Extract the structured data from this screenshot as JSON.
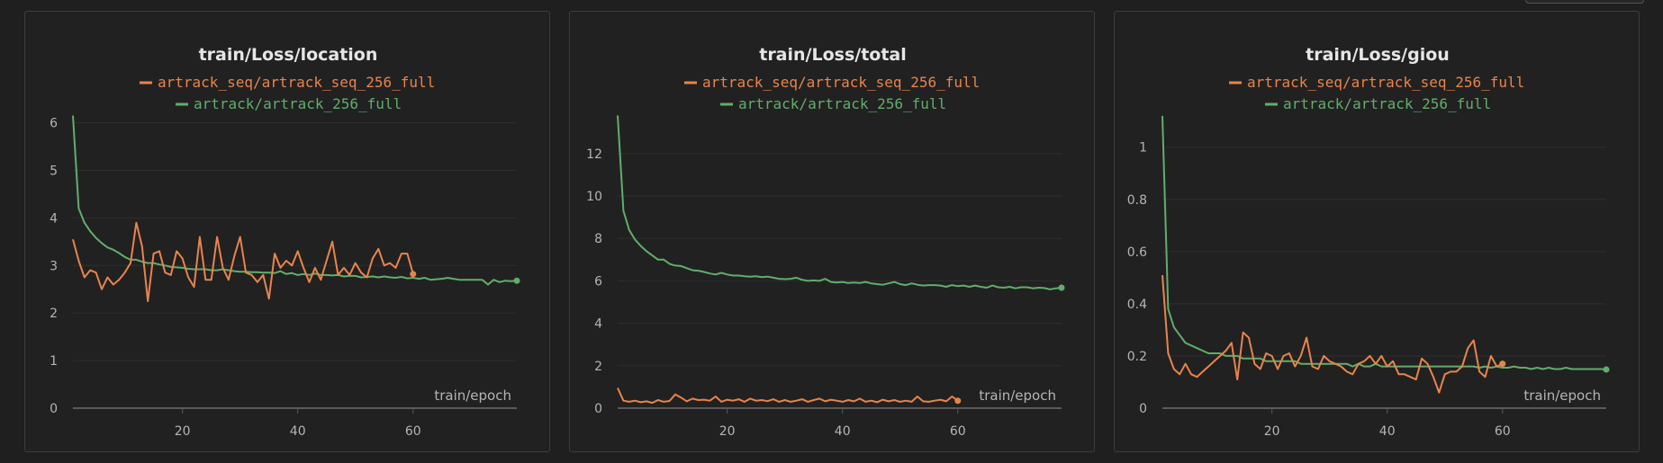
{
  "colors": {
    "orange": "#e8844c",
    "green": "#62ad6b",
    "grid": "#2f2f2f",
    "axis": "#5a5a5a",
    "text": "#b5b5b5",
    "title": "#e6e6e6"
  },
  "chart_data": [
    {
      "type": "line",
      "title": "train/Loss/location",
      "xlabel": "train/epoch",
      "xticks": [
        20,
        40,
        60
      ],
      "yticks": [
        0,
        1,
        2,
        3,
        4,
        5,
        6
      ],
      "xlim": [
        1,
        78
      ],
      "ylim": [
        0,
        6.2
      ],
      "series": [
        {
          "name": "artrack_seq/artrack_seq_256_full",
          "color": "#e8844c",
          "x": [
            1,
            2,
            3,
            4,
            5,
            6,
            7,
            8,
            9,
            10,
            11,
            12,
            13,
            14,
            15,
            16,
            17,
            18,
            19,
            20,
            21,
            22,
            23,
            24,
            25,
            26,
            27,
            28,
            29,
            30,
            31,
            32,
            33,
            34,
            35,
            36,
            37,
            38,
            39,
            40,
            41,
            42,
            43,
            44,
            45,
            46,
            47,
            48,
            49,
            50,
            51,
            52,
            53,
            54,
            55,
            56,
            57,
            58,
            59,
            60
          ],
          "y": [
            3.55,
            3.1,
            2.75,
            2.9,
            2.85,
            2.5,
            2.75,
            2.6,
            2.7,
            2.85,
            3.05,
            3.9,
            3.4,
            2.25,
            3.25,
            3.3,
            2.85,
            2.8,
            3.3,
            3.15,
            2.75,
            2.55,
            3.6,
            2.7,
            2.7,
            3.6,
            2.95,
            2.7,
            3.2,
            3.6,
            2.85,
            2.8,
            2.65,
            2.8,
            2.3,
            3.25,
            2.95,
            3.1,
            3.0,
            3.3,
            2.95,
            2.65,
            2.95,
            2.7,
            3.1,
            3.5,
            2.8,
            2.95,
            2.8,
            3.05,
            2.85,
            2.75,
            3.15,
            3.35,
            3.0,
            3.05,
            2.95,
            3.25,
            3.25,
            2.82
          ]
        },
        {
          "name": "artrack/artrack_256_full",
          "color": "#62ad6b",
          "x": [
            1,
            2,
            3,
            4,
            5,
            6,
            7,
            8,
            9,
            10,
            11,
            12,
            13,
            14,
            15,
            16,
            17,
            18,
            19,
            20,
            21,
            22,
            23,
            24,
            25,
            26,
            27,
            28,
            29,
            30,
            31,
            32,
            33,
            34,
            35,
            36,
            37,
            38,
            39,
            40,
            41,
            42,
            43,
            44,
            45,
            46,
            47,
            48,
            49,
            50,
            51,
            52,
            53,
            54,
            55,
            56,
            57,
            58,
            59,
            60,
            61,
            62,
            63,
            64,
            65,
            66,
            67,
            68,
            69,
            70,
            71,
            72,
            73,
            74,
            75,
            76,
            77,
            78
          ],
          "y": [
            6.15,
            4.2,
            3.9,
            3.72,
            3.58,
            3.47,
            3.38,
            3.33,
            3.26,
            3.18,
            3.12,
            3.12,
            3.08,
            3.05,
            3.05,
            3.02,
            3.0,
            2.97,
            2.96,
            2.95,
            2.93,
            2.92,
            2.92,
            2.92,
            2.9,
            2.9,
            2.92,
            2.9,
            2.88,
            2.87,
            2.87,
            2.86,
            2.86,
            2.85,
            2.85,
            2.84,
            2.88,
            2.82,
            2.84,
            2.8,
            2.82,
            2.8,
            2.83,
            2.8,
            2.8,
            2.79,
            2.8,
            2.77,
            2.78,
            2.78,
            2.75,
            2.76,
            2.77,
            2.75,
            2.77,
            2.75,
            2.74,
            2.76,
            2.73,
            2.74,
            2.72,
            2.74,
            2.7,
            2.71,
            2.72,
            2.74,
            2.72,
            2.7,
            2.7,
            2.7,
            2.7,
            2.7,
            2.6,
            2.7,
            2.65,
            2.68,
            2.67,
            2.68
          ]
        }
      ]
    },
    {
      "type": "line",
      "title": "train/Loss/total",
      "xlabel": "train/epoch",
      "xticks": [
        20,
        40,
        60
      ],
      "yticks": [
        0,
        2,
        4,
        6,
        8,
        10,
        12
      ],
      "xlim": [
        1,
        78
      ],
      "ylim": [
        0,
        13.9
      ],
      "series": [
        {
          "name": "artrack_seq/artrack_seq_256_full",
          "color": "#e8844c",
          "x": [
            1,
            2,
            3,
            4,
            5,
            6,
            7,
            8,
            9,
            10,
            11,
            12,
            13,
            14,
            15,
            16,
            17,
            18,
            19,
            20,
            21,
            22,
            23,
            24,
            25,
            26,
            27,
            28,
            29,
            30,
            31,
            32,
            33,
            34,
            35,
            36,
            37,
            38,
            39,
            40,
            41,
            42,
            43,
            44,
            45,
            46,
            47,
            48,
            49,
            50,
            51,
            52,
            53,
            54,
            55,
            56,
            57,
            58,
            59,
            60
          ],
          "y": [
            0.95,
            0.35,
            0.3,
            0.35,
            0.28,
            0.32,
            0.25,
            0.38,
            0.3,
            0.34,
            0.65,
            0.5,
            0.32,
            0.45,
            0.38,
            0.4,
            0.35,
            0.55,
            0.3,
            0.4,
            0.35,
            0.42,
            0.3,
            0.45,
            0.35,
            0.38,
            0.33,
            0.42,
            0.3,
            0.38,
            0.3,
            0.35,
            0.42,
            0.3,
            0.38,
            0.45,
            0.32,
            0.4,
            0.35,
            0.3,
            0.38,
            0.32,
            0.45,
            0.3,
            0.35,
            0.28,
            0.4,
            0.32,
            0.38,
            0.3,
            0.35,
            0.3,
            0.55,
            0.32,
            0.3,
            0.35,
            0.4,
            0.32,
            0.55,
            0.35
          ]
        },
        {
          "name": "artrack/artrack_256_full",
          "color": "#62ad6b",
          "x": [
            1,
            2,
            3,
            4,
            5,
            6,
            7,
            8,
            9,
            10,
            11,
            12,
            13,
            14,
            15,
            16,
            17,
            18,
            19,
            20,
            21,
            22,
            23,
            24,
            25,
            26,
            27,
            28,
            29,
            30,
            31,
            32,
            33,
            34,
            35,
            36,
            37,
            38,
            39,
            40,
            41,
            42,
            43,
            44,
            45,
            46,
            47,
            48,
            49,
            50,
            51,
            52,
            53,
            54,
            55,
            56,
            57,
            58,
            59,
            60,
            61,
            62,
            63,
            64,
            65,
            66,
            67,
            68,
            69,
            70,
            71,
            72,
            73,
            74,
            75,
            76,
            77,
            78
          ],
          "y": [
            13.8,
            9.3,
            8.4,
            7.95,
            7.65,
            7.4,
            7.2,
            7.0,
            7.0,
            6.8,
            6.72,
            6.7,
            6.6,
            6.5,
            6.48,
            6.42,
            6.35,
            6.3,
            6.38,
            6.3,
            6.25,
            6.25,
            6.22,
            6.2,
            6.22,
            6.18,
            6.2,
            6.15,
            6.1,
            6.08,
            6.1,
            6.15,
            6.05,
            6.0,
            6.02,
            6.0,
            6.1,
            5.95,
            5.92,
            5.95,
            5.9,
            5.92,
            5.9,
            5.95,
            5.88,
            5.85,
            5.82,
            5.88,
            5.95,
            5.85,
            5.8,
            5.88,
            5.82,
            5.78,
            5.8,
            5.8,
            5.78,
            5.72,
            5.8,
            5.75,
            5.78,
            5.72,
            5.78,
            5.72,
            5.68,
            5.78,
            5.7,
            5.68,
            5.72,
            5.65,
            5.7,
            5.7,
            5.65,
            5.68,
            5.66,
            5.6,
            5.65,
            5.68
          ]
        }
      ]
    },
    {
      "type": "line",
      "title": "train/Loss/giou",
      "xlabel": "train/epoch",
      "xticks": [
        20,
        40,
        60
      ],
      "yticks": [
        0,
        0.2,
        0.4,
        0.6,
        0.8,
        1
      ],
      "xlim": [
        1,
        78
      ],
      "ylim": [
        0,
        1.13
      ],
      "series": [
        {
          "name": "artrack_seq/artrack_seq_256_full",
          "color": "#e8844c",
          "x": [
            1,
            2,
            3,
            4,
            5,
            6,
            7,
            8,
            9,
            10,
            11,
            12,
            13,
            14,
            15,
            16,
            17,
            18,
            19,
            20,
            21,
            22,
            23,
            24,
            25,
            26,
            27,
            28,
            29,
            30,
            31,
            32,
            33,
            34,
            35,
            36,
            37,
            38,
            39,
            40,
            41,
            42,
            43,
            44,
            45,
            46,
            47,
            48,
            49,
            50,
            51,
            52,
            53,
            54,
            55,
            56,
            57,
            58,
            59,
            60
          ],
          "y": [
            0.51,
            0.21,
            0.15,
            0.13,
            0.17,
            0.13,
            0.12,
            0.14,
            0.16,
            0.18,
            0.2,
            0.22,
            0.25,
            0.11,
            0.29,
            0.27,
            0.17,
            0.15,
            0.21,
            0.2,
            0.15,
            0.2,
            0.21,
            0.16,
            0.2,
            0.27,
            0.16,
            0.15,
            0.2,
            0.18,
            0.17,
            0.16,
            0.14,
            0.13,
            0.17,
            0.18,
            0.2,
            0.17,
            0.2,
            0.16,
            0.18,
            0.13,
            0.13,
            0.12,
            0.11,
            0.19,
            0.17,
            0.12,
            0.06,
            0.13,
            0.14,
            0.14,
            0.16,
            0.23,
            0.26,
            0.14,
            0.12,
            0.2,
            0.16,
            0.17
          ]
        },
        {
          "name": "artrack/artrack_256_full",
          "color": "#62ad6b",
          "x": [
            1,
            2,
            3,
            4,
            5,
            6,
            7,
            8,
            9,
            10,
            11,
            12,
            13,
            14,
            15,
            16,
            17,
            18,
            19,
            20,
            21,
            22,
            23,
            24,
            25,
            26,
            27,
            28,
            29,
            30,
            31,
            32,
            33,
            34,
            35,
            36,
            37,
            38,
            39,
            40,
            41,
            42,
            43,
            44,
            45,
            46,
            47,
            48,
            49,
            50,
            51,
            52,
            53,
            54,
            55,
            56,
            57,
            58,
            59,
            60,
            61,
            62,
            63,
            64,
            65,
            66,
            67,
            68,
            69,
            70,
            71,
            72,
            73,
            74,
            75,
            76,
            77,
            78
          ],
          "y": [
            1.12,
            0.38,
            0.31,
            0.28,
            0.25,
            0.24,
            0.23,
            0.22,
            0.21,
            0.21,
            0.21,
            0.2,
            0.2,
            0.2,
            0.19,
            0.19,
            0.19,
            0.19,
            0.18,
            0.18,
            0.18,
            0.18,
            0.18,
            0.18,
            0.17,
            0.17,
            0.17,
            0.17,
            0.17,
            0.17,
            0.17,
            0.17,
            0.17,
            0.16,
            0.17,
            0.16,
            0.16,
            0.17,
            0.16,
            0.16,
            0.16,
            0.16,
            0.16,
            0.16,
            0.16,
            0.16,
            0.16,
            0.16,
            0.16,
            0.16,
            0.16,
            0.16,
            0.16,
            0.16,
            0.16,
            0.155,
            0.16,
            0.155,
            0.16,
            0.155,
            0.155,
            0.16,
            0.155,
            0.155,
            0.15,
            0.155,
            0.15,
            0.155,
            0.15,
            0.15,
            0.155,
            0.15,
            0.15,
            0.15,
            0.15,
            0.15,
            0.15,
            0.148
          ]
        }
      ]
    }
  ]
}
